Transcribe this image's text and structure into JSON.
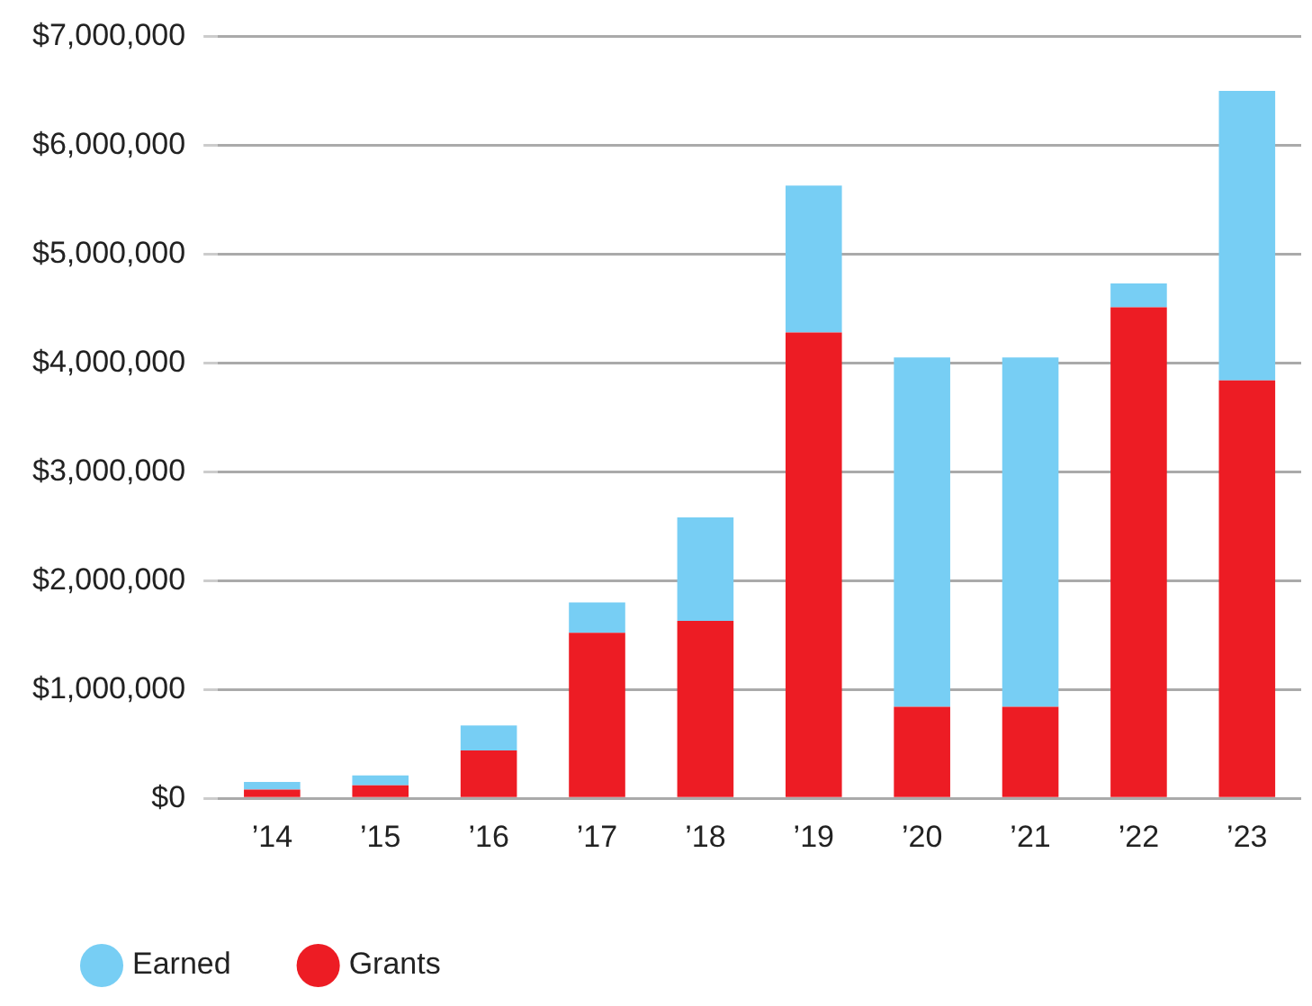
{
  "chart_data": {
    "type": "bar",
    "stacked": true,
    "categories": [
      "’14",
      "’15",
      "’16",
      "’17",
      "’18",
      "’19",
      "’20",
      "’21",
      "’22",
      "’23"
    ],
    "series": [
      {
        "name": "Grants",
        "color": "#ed1c24",
        "values": [
          80000,
          120000,
          440000,
          1520000,
          1630000,
          4280000,
          840000,
          840000,
          4510000,
          3840000
        ]
      },
      {
        "name": "Earned",
        "color": "#77cef4",
        "values": [
          70000,
          90000,
          230000,
          280000,
          950000,
          1350000,
          3210000,
          3210000,
          220000,
          2660000
        ]
      }
    ],
    "ylim": [
      0,
      7000000
    ],
    "yticks": [
      {
        "value": 0,
        "label": "$0"
      },
      {
        "value": 1000000,
        "label": "$1,000,000"
      },
      {
        "value": 2000000,
        "label": "$2,000,000"
      },
      {
        "value": 3000000,
        "label": "$3,000,000"
      },
      {
        "value": 4000000,
        "label": "$4,000,000"
      },
      {
        "value": 5000000,
        "label": "$5,000,000"
      },
      {
        "value": 6000000,
        "label": "$6,000,000"
      },
      {
        "value": 7000000,
        "label": "$7,000,000"
      }
    ],
    "grid": "y",
    "legend": "bottom left"
  }
}
